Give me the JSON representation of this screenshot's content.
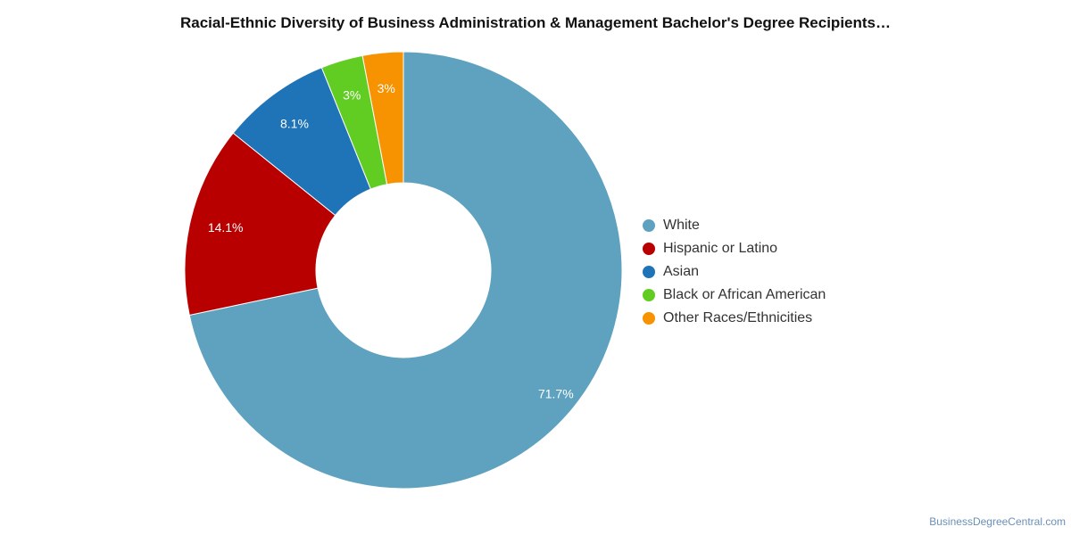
{
  "chart_data": {
    "type": "pie",
    "donut": true,
    "title": "Racial-Ethnic Diversity of Business Administration & Management Bachelor's Degree Recipients…",
    "legend_position": "right",
    "series": [
      {
        "name": "White",
        "value": 71.7,
        "label": "71.7%",
        "color": "#5ea2bf"
      },
      {
        "name": "Hispanic or Latino",
        "value": 14.1,
        "label": "14.1%",
        "color": "#b80000"
      },
      {
        "name": "Asian",
        "value": 8.1,
        "label": "8.1%",
        "color": "#1f73b7"
      },
      {
        "name": "Black or African American",
        "value": 3.1,
        "label": "3%",
        "color": "#61cc22"
      },
      {
        "name": "Other Races/Ethnicities",
        "value": 3.0,
        "label": "3%",
        "color": "#f79200"
      }
    ]
  },
  "footer": {
    "credit": "BusinessDegreeCentral.com"
  }
}
